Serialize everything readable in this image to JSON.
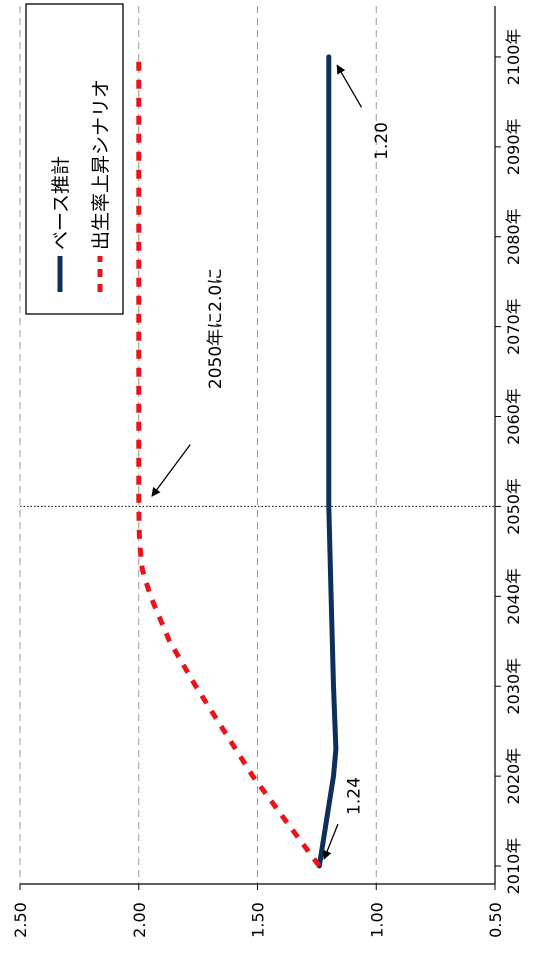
{
  "chart_data": {
    "type": "line",
    "orientation": "rotated 90 degrees clockwise (x axis runs bottom to top, values increase to the left)",
    "x_ticks": [
      "2010年",
      "2020年",
      "2030年",
      "2040年",
      "2050年",
      "2060年",
      "2070年",
      "2080年",
      "2090年",
      "2100年"
    ],
    "y_ticks": [
      "0.50",
      "1.00",
      "1.50",
      "2.00",
      "2.50"
    ],
    "xlim": [
      2008,
      2105
    ],
    "ylim": [
      0.5,
      2.5
    ],
    "grid": "dashed horizontal gridlines at each y tick",
    "reference_line": {
      "x": 2050,
      "style": "dotted"
    },
    "legend_position": "top-left (in rotated view)",
    "series": [
      {
        "name": "ベース推計",
        "color": "#0d2f5c",
        "style": "solid",
        "x": [
          2010,
          2020,
          2023,
          2030,
          2040,
          2050,
          2060,
          2070,
          2080,
          2090,
          2100
        ],
        "y": [
          1.24,
          1.18,
          1.17,
          1.18,
          1.19,
          1.2,
          1.2,
          1.2,
          1.2,
          1.2,
          1.2
        ]
      },
      {
        "name": "出生率上昇シナリオ",
        "color": "#e8141c",
        "style": "dashed",
        "x": [
          2010,
          2015,
          2020,
          2025,
          2030,
          2035,
          2040,
          2043,
          2046,
          2050,
          2060,
          2070,
          2080,
          2090,
          2100
        ],
        "y": [
          1.24,
          1.38,
          1.52,
          1.64,
          1.76,
          1.87,
          1.95,
          1.985,
          1.997,
          2.0,
          2.0,
          2.0,
          2.0,
          2.0,
          2.0
        ]
      }
    ],
    "annotations": [
      {
        "text": "1.24",
        "x": 2010,
        "y": 1.24
      },
      {
        "text": "2050年に2.0に",
        "x": 2050,
        "y": 2.0
      },
      {
        "text": "1.20",
        "x": 2100,
        "y": 1.2
      }
    ]
  }
}
